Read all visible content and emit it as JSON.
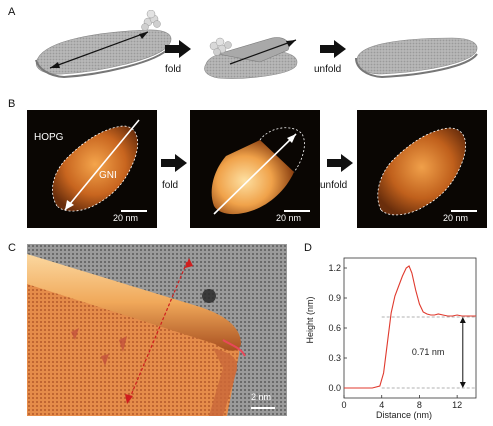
{
  "panels": {
    "A": {
      "letter": "A",
      "step1_label": "fold",
      "step2_label": "unfold"
    },
    "B": {
      "letter": "B",
      "substrate_label": "HOPG",
      "sheet_label": "GNI",
      "step1_label": "fold",
      "step2_label": "unfold",
      "scale_labels": [
        "20 nm",
        "20 nm",
        "20 nm"
      ]
    },
    "C": {
      "letter": "C",
      "scale_label": "2 nm"
    },
    "D": {
      "letter": "D",
      "annotation": "0.71 nm"
    }
  },
  "colors": {
    "afm_dark": "#0a0603",
    "afm_bright": "#f3b56a",
    "profile_line": "#e03a2e",
    "arrow_black": "#111111"
  },
  "chart_data": {
    "type": "line",
    "title": "",
    "xlabel": "Distance (nm)",
    "ylabel": "Height (nm)",
    "xlim": [
      0,
      14
    ],
    "ylim": [
      -0.1,
      1.3
    ],
    "x_ticks": [
      0,
      4,
      8,
      12
    ],
    "y_ticks": [
      "0.0",
      "0.3",
      "0.6",
      "0.9",
      "1.2"
    ],
    "series": [
      {
        "x": [
          0,
          1,
          2,
          3,
          3.8,
          4.2,
          4.6,
          5.0,
          5.4,
          5.8,
          6.2,
          6.6,
          6.9,
          7.2,
          7.6,
          8.0,
          8.4,
          8.8,
          9.2,
          9.6,
          10.0,
          10.5,
          11.0,
          11.5,
          12.0,
          12.5,
          13.0,
          13.5,
          14.0
        ],
        "values": [
          0.0,
          0.0,
          0.0,
          0.0,
          0.02,
          0.15,
          0.45,
          0.75,
          0.92,
          1.02,
          1.12,
          1.2,
          1.22,
          1.15,
          0.98,
          0.84,
          0.76,
          0.74,
          0.73,
          0.73,
          0.74,
          0.73,
          0.72,
          0.72,
          0.73,
          0.72,
          0.72,
          0.72,
          0.72
        ]
      }
    ],
    "reference_levels": [
      0.0,
      0.71
    ]
  }
}
